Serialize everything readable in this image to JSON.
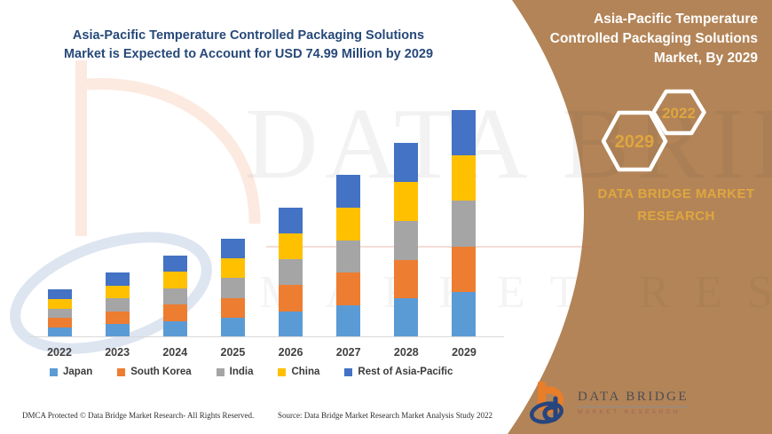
{
  "headline": {
    "lines": [
      "Asia-Pacific Temperature Controlled Packaging Solutions",
      "Market is Expected to Account for USD 74.99 Million by 2029"
    ]
  },
  "right_panel": {
    "title_lines": [
      "Asia-Pacific Temperature",
      "Controlled Packaging Solutions",
      "Market, By 2029"
    ],
    "hexagons": [
      {
        "label": "2029"
      },
      {
        "label": "2022"
      }
    ],
    "brand_wordmark": "DATA BRIDGE MARKET RESEARCH"
  },
  "chart_data": {
    "type": "bar",
    "stacked": true,
    "title": "Asia-Pacific Temperature Controlled Packaging Solutions Market is Expected to Account for USD 74.99 Million by 2029",
    "unit": "USD Million",
    "categories": [
      "2022",
      "2023",
      "2024",
      "2025",
      "2026",
      "2027",
      "2028",
      "2029"
    ],
    "series": [
      {
        "name": "Japan",
        "color": "#5b9bd5",
        "values": [
          3.2,
          4.3,
          5.4,
          6.5,
          8.6,
          10.7,
          12.8,
          15.0
        ]
      },
      {
        "name": "South Korea",
        "color": "#ed7d31",
        "values": [
          3.2,
          4.3,
          5.4,
          6.5,
          8.6,
          10.7,
          12.8,
          15.0
        ]
      },
      {
        "name": "India",
        "color": "#a5a5a5",
        "values": [
          3.1,
          4.3,
          5.4,
          6.5,
          8.5,
          10.7,
          12.8,
          15.0
        ]
      },
      {
        "name": "China",
        "color": "#ffc000",
        "values": [
          3.2,
          4.2,
          5.4,
          6.5,
          8.6,
          10.8,
          12.9,
          15.0
        ]
      },
      {
        "name": "Rest of Asia-Pacific",
        "color": "#4472c4",
        "values": [
          3.1,
          4.3,
          5.3,
          6.5,
          8.5,
          10.7,
          12.8,
          14.99
        ]
      }
    ],
    "estimated_totals": [
      15.8,
      21.4,
      26.9,
      32.5,
      42.8,
      53.6,
      64.1,
      74.99
    ],
    "highlight_value": "USD 74.99 Million",
    "highlight_year": "2029",
    "ylim": [
      0,
      80
    ],
    "grid": false,
    "legend_position": "bottom",
    "xlabel": "",
    "ylabel": ""
  },
  "watermark": {
    "line1": "DATA BRIDGE",
    "line2": "MARKET RESEARCH"
  },
  "footer": {
    "dmca": "DMCA Protected © Data Bridge Market Research- All Rights Reserved.",
    "source": "Source: Data Bridge Market Research Market Analysis Study 2022",
    "logo_name": "DATA BRIDGE",
    "logo_tagline": "MARKET RESEARCH"
  },
  "colors": {
    "panel_brown": "#b38457",
    "accent_gold": "#dfa63f",
    "headline_blue": "#27497a",
    "hexagon_outline": "#ffffff"
  }
}
